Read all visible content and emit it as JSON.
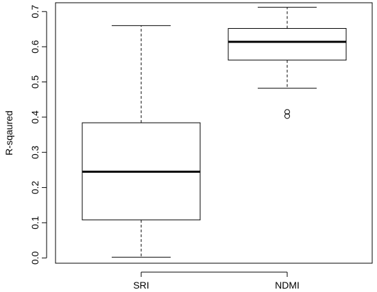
{
  "chart_data": {
    "type": "boxplot",
    "title": "",
    "xlabel": "",
    "ylabel": "R-sqaured",
    "ylim": [
      -0.015,
      0.725
    ],
    "y_ticks": [
      0.0,
      0.1,
      0.2,
      0.3,
      0.4,
      0.5,
      0.6,
      0.7
    ],
    "y_tick_labels": [
      "0.0",
      "0.1",
      "0.2",
      "0.3",
      "0.4",
      "0.5",
      "0.6",
      "0.7"
    ],
    "categories": [
      "SRI",
      "NDMI"
    ],
    "boxes": [
      {
        "category": "SRI",
        "whisker_low": 0.002,
        "q1": 0.108,
        "median": 0.245,
        "q3": 0.384,
        "whisker_high": 0.66,
        "outliers": []
      },
      {
        "category": "NDMI",
        "whisker_low": 0.482,
        "q1": 0.562,
        "median": 0.614,
        "q3": 0.652,
        "whisker_high": 0.712,
        "outliers": [
          0.403,
          0.415
        ]
      }
    ],
    "grid": false,
    "legend": "none"
  }
}
